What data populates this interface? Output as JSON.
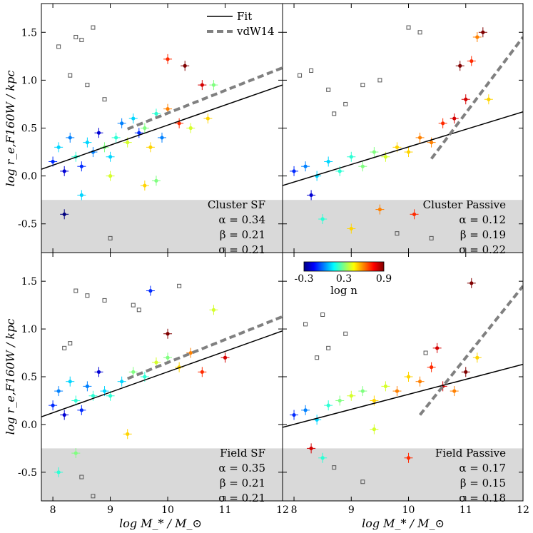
{
  "chart_data": {
    "type": "scatter",
    "layout": "2x2 panels sharing x and y axes",
    "xlabel": "log M_* / M_⊙",
    "ylabel": "log r_e,F160W / kpc",
    "xlim": [
      7.8,
      12.0
    ],
    "ylim": [
      -0.8,
      1.8
    ],
    "x_ticks": [
      8,
      9,
      10,
      11,
      12
    ],
    "y_ticks": [
      -0.5,
      0.0,
      0.5,
      1.0,
      1.5
    ],
    "y_tick_labels": [
      "-0.5",
      "0.0",
      "0.5",
      "1.0",
      "1.5"
    ],
    "shaded_region_below": -0.25,
    "legend": {
      "placement": "top of upper-left panel",
      "entries": [
        {
          "label": "Fit",
          "style": "solid black line"
        },
        {
          "label": "vdW14",
          "style": "thick dashed grey line"
        }
      ]
    },
    "colorbar": {
      "label": "log n",
      "ticks": [
        "-0.3",
        "0.3",
        "0.9"
      ],
      "range": [
        -0.3,
        0.9
      ],
      "colormap": "jet"
    },
    "panels": [
      {
        "name": "Cluster SF",
        "alpha": "α = 0.34",
        "beta": "β = 0.21",
        "sigma": "σ = 0.21",
        "fit_line": {
          "x": [
            7.8,
            12.0
          ],
          "y": [
            0.07,
            0.95
          ]
        },
        "vdw14_line": {
          "x": [
            9.3,
            12.0
          ],
          "y": [
            0.49,
            1.13
          ]
        },
        "points": [
          {
            "x": 8.0,
            "y": 0.15,
            "n": -0.1
          },
          {
            "x": 8.1,
            "y": 0.3,
            "n": 0.1
          },
          {
            "x": 8.2,
            "y": 0.05,
            "n": -0.2
          },
          {
            "x": 8.3,
            "y": 0.4,
            "n": 0.0
          },
          {
            "x": 8.4,
            "y": 0.2,
            "n": 0.2
          },
          {
            "x": 8.5,
            "y": 0.1,
            "n": -0.1
          },
          {
            "x": 8.6,
            "y": 0.35,
            "n": 0.1
          },
          {
            "x": 8.7,
            "y": 0.25,
            "n": 0.0
          },
          {
            "x": 8.8,
            "y": 0.45,
            "n": -0.2
          },
          {
            "x": 8.9,
            "y": 0.3,
            "n": 0.3
          },
          {
            "x": 9.0,
            "y": 0.2,
            "n": 0.1
          },
          {
            "x": 9.1,
            "y": 0.4,
            "n": 0.2
          },
          {
            "x": 9.2,
            "y": 0.55,
            "n": 0.0
          },
          {
            "x": 9.3,
            "y": 0.35,
            "n": 0.4
          },
          {
            "x": 9.4,
            "y": 0.6,
            "n": 0.1
          },
          {
            "x": 9.5,
            "y": 0.45,
            "n": -0.1
          },
          {
            "x": 9.6,
            "y": 0.5,
            "n": 0.3
          },
          {
            "x": 9.7,
            "y": 0.3,
            "n": 0.5
          },
          {
            "x": 9.8,
            "y": 0.65,
            "n": 0.2
          },
          {
            "x": 9.9,
            "y": 0.4,
            "n": 0.0
          },
          {
            "x": 10.0,
            "y": 0.7,
            "n": 0.6
          },
          {
            "x": 10.2,
            "y": 0.55,
            "n": 0.7
          },
          {
            "x": 10.4,
            "y": 0.5,
            "n": 0.4
          },
          {
            "x": 10.6,
            "y": 0.95,
            "n": 0.8
          },
          {
            "x": 10.7,
            "y": 0.6,
            "n": 0.5
          },
          {
            "x": 10.8,
            "y": 0.95,
            "n": 0.3
          },
          {
            "x": 10.3,
            "y": 1.15,
            "n": 0.9
          },
          {
            "x": 10.0,
            "y": 1.22,
            "n": 0.7
          },
          {
            "x": 8.2,
            "y": -0.4,
            "n": -0.3
          },
          {
            "x": 8.5,
            "y": -0.2,
            "n": 0.1
          },
          {
            "x": 9.0,
            "y": 0.0,
            "n": 0.4
          },
          {
            "x": 9.8,
            "y": -0.05,
            "n": 0.3
          },
          {
            "x": 9.6,
            "y": -0.1,
            "n": 0.5
          }
        ],
        "outliers": [
          {
            "x": 8.4,
            "y": 1.45
          },
          {
            "x": 8.5,
            "y": 1.42
          },
          {
            "x": 8.7,
            "y": 1.55
          },
          {
            "x": 8.3,
            "y": 1.05
          },
          {
            "x": 8.6,
            "y": 0.95
          },
          {
            "x": 8.1,
            "y": 1.35
          },
          {
            "x": 9.0,
            "y": -0.65
          },
          {
            "x": 8.9,
            "y": 0.8
          }
        ]
      },
      {
        "name": "Cluster Passive",
        "alpha": "α = 0.12",
        "beta": "β = 0.19",
        "sigma": "σ = 0.22",
        "fit_line": {
          "x": [
            7.8,
            12.0
          ],
          "y": [
            -0.1,
            0.67
          ]
        },
        "vdw14_line": {
          "x": [
            10.4,
            12.0
          ],
          "y": [
            0.18,
            1.45
          ]
        },
        "points": [
          {
            "x": 8.0,
            "y": 0.05,
            "n": -0.1
          },
          {
            "x": 8.2,
            "y": 0.1,
            "n": 0.0
          },
          {
            "x": 8.4,
            "y": 0.0,
            "n": 0.1
          },
          {
            "x": 8.6,
            "y": 0.15,
            "n": 0.1
          },
          {
            "x": 8.8,
            "y": 0.05,
            "n": 0.2
          },
          {
            "x": 9.0,
            "y": 0.2,
            "n": 0.2
          },
          {
            "x": 9.2,
            "y": 0.1,
            "n": 0.3
          },
          {
            "x": 9.4,
            "y": 0.25,
            "n": 0.3
          },
          {
            "x": 9.6,
            "y": 0.2,
            "n": 0.4
          },
          {
            "x": 9.8,
            "y": 0.3,
            "n": 0.5
          },
          {
            "x": 10.0,
            "y": 0.25,
            "n": 0.5
          },
          {
            "x": 10.2,
            "y": 0.4,
            "n": 0.6
          },
          {
            "x": 10.4,
            "y": 0.35,
            "n": 0.6
          },
          {
            "x": 10.6,
            "y": 0.55,
            "n": 0.7
          },
          {
            "x": 10.8,
            "y": 0.6,
            "n": 0.8
          },
          {
            "x": 11.0,
            "y": 0.8,
            "n": 0.8
          },
          {
            "x": 11.1,
            "y": 1.2,
            "n": 0.7
          },
          {
            "x": 11.2,
            "y": 1.45,
            "n": 0.6
          },
          {
            "x": 11.3,
            "y": 1.5,
            "n": 0.9
          },
          {
            "x": 11.4,
            "y": 0.8,
            "n": 0.5
          },
          {
            "x": 10.9,
            "y": 1.15,
            "n": 0.9
          },
          {
            "x": 8.5,
            "y": -0.45,
            "n": 0.2
          },
          {
            "x": 9.5,
            "y": -0.35,
            "n": 0.6
          },
          {
            "x": 10.1,
            "y": -0.4,
            "n": 0.7
          },
          {
            "x": 9.0,
            "y": -0.55,
            "n": 0.5
          },
          {
            "x": 8.3,
            "y": -0.2,
            "n": -0.2
          }
        ],
        "outliers": [
          {
            "x": 8.1,
            "y": 1.05
          },
          {
            "x": 8.3,
            "y": 1.1
          },
          {
            "x": 8.6,
            "y": 0.9
          },
          {
            "x": 8.9,
            "y": 0.75
          },
          {
            "x": 9.2,
            "y": 0.95
          },
          {
            "x": 9.5,
            "y": 1.0
          },
          {
            "x": 10.0,
            "y": 1.55
          },
          {
            "x": 10.2,
            "y": 1.5
          },
          {
            "x": 8.7,
            "y": 0.65
          },
          {
            "x": 9.8,
            "y": -0.6
          },
          {
            "x": 10.4,
            "y": -0.65
          }
        ]
      },
      {
        "name": "Field SF",
        "alpha": "α = 0.35",
        "beta": "β = 0.21",
        "sigma": "σ = 0.21",
        "fit_line": {
          "x": [
            7.8,
            12.0
          ],
          "y": [
            0.08,
            0.98
          ]
        },
        "vdw14_line": {
          "x": [
            9.3,
            12.0
          ],
          "y": [
            0.48,
            1.13
          ]
        },
        "points": [
          {
            "x": 8.0,
            "y": 0.2,
            "n": -0.1
          },
          {
            "x": 8.1,
            "y": 0.35,
            "n": 0.0
          },
          {
            "x": 8.2,
            "y": 0.1,
            "n": -0.2
          },
          {
            "x": 8.3,
            "y": 0.45,
            "n": 0.1
          },
          {
            "x": 8.4,
            "y": 0.25,
            "n": 0.2
          },
          {
            "x": 8.5,
            "y": 0.15,
            "n": -0.1
          },
          {
            "x": 8.6,
            "y": 0.4,
            "n": 0.0
          },
          {
            "x": 8.7,
            "y": 0.3,
            "n": 0.2
          },
          {
            "x": 8.8,
            "y": 0.55,
            "n": -0.2
          },
          {
            "x": 8.9,
            "y": 0.35,
            "n": 0.1
          },
          {
            "x": 9.0,
            "y": 0.3,
            "n": 0.2
          },
          {
            "x": 9.2,
            "y": 0.45,
            "n": 0.1
          },
          {
            "x": 9.4,
            "y": 0.55,
            "n": 0.3
          },
          {
            "x": 9.6,
            "y": 0.5,
            "n": 0.2
          },
          {
            "x": 9.8,
            "y": 0.65,
            "n": 0.4
          },
          {
            "x": 10.0,
            "y": 0.7,
            "n": 0.3
          },
          {
            "x": 10.2,
            "y": 0.6,
            "n": 0.5
          },
          {
            "x": 10.4,
            "y": 0.75,
            "n": 0.6
          },
          {
            "x": 10.6,
            "y": 0.55,
            "n": 0.7
          },
          {
            "x": 10.8,
            "y": 1.2,
            "n": 0.4
          },
          {
            "x": 11.0,
            "y": 0.7,
            "n": 0.8
          },
          {
            "x": 9.7,
            "y": 1.4,
            "n": -0.1
          },
          {
            "x": 10.0,
            "y": 0.95,
            "n": 0.9
          },
          {
            "x": 8.1,
            "y": -0.5,
            "n": 0.2
          },
          {
            "x": 8.4,
            "y": -0.3,
            "n": 0.3
          },
          {
            "x": 9.3,
            "y": -0.1,
            "n": 0.5
          }
        ],
        "outliers": [
          {
            "x": 8.4,
            "y": 1.4
          },
          {
            "x": 8.6,
            "y": 1.35
          },
          {
            "x": 8.9,
            "y": 1.3
          },
          {
            "x": 9.4,
            "y": 1.25
          },
          {
            "x": 9.5,
            "y": 1.2
          },
          {
            "x": 8.3,
            "y": 0.85
          },
          {
            "x": 8.2,
            "y": 0.8
          },
          {
            "x": 8.7,
            "y": -0.75
          },
          {
            "x": 8.5,
            "y": -0.55
          },
          {
            "x": 10.2,
            "y": 1.45
          }
        ]
      },
      {
        "name": "Field Passive",
        "alpha": "α = 0.17",
        "beta": "β = 0.15",
        "sigma": "σ = 0.18",
        "fit_line": {
          "x": [
            7.8,
            12.0
          ],
          "y": [
            -0.03,
            0.63
          ]
        },
        "vdw14_line": {
          "x": [
            10.2,
            12.0
          ],
          "y": [
            0.1,
            1.45
          ]
        },
        "points": [
          {
            "x": 8.0,
            "y": 0.1,
            "n": -0.1
          },
          {
            "x": 8.2,
            "y": 0.15,
            "n": 0.0
          },
          {
            "x": 8.4,
            "y": 0.05,
            "n": 0.1
          },
          {
            "x": 8.6,
            "y": 0.2,
            "n": 0.2
          },
          {
            "x": 8.8,
            "y": 0.25,
            "n": 0.3
          },
          {
            "x": 9.0,
            "y": 0.3,
            "n": 0.4
          },
          {
            "x": 9.2,
            "y": 0.35,
            "n": 0.3
          },
          {
            "x": 9.4,
            "y": 0.25,
            "n": 0.5
          },
          {
            "x": 9.6,
            "y": 0.4,
            "n": 0.4
          },
          {
            "x": 9.8,
            "y": 0.35,
            "n": 0.6
          },
          {
            "x": 10.0,
            "y": 0.5,
            "n": 0.5
          },
          {
            "x": 10.2,
            "y": 0.45,
            "n": 0.6
          },
          {
            "x": 10.4,
            "y": 0.6,
            "n": 0.7
          },
          {
            "x": 10.6,
            "y": 0.4,
            "n": 0.8
          },
          {
            "x": 10.8,
            "y": 0.35,
            "n": 0.6
          },
          {
            "x": 11.0,
            "y": 0.55,
            "n": 0.9
          },
          {
            "x": 11.2,
            "y": 0.7,
            "n": 0.5
          },
          {
            "x": 11.1,
            "y": 1.48,
            "n": 0.9
          },
          {
            "x": 10.5,
            "y": 0.8,
            "n": 0.8
          },
          {
            "x": 8.5,
            "y": -0.35,
            "n": 0.2
          },
          {
            "x": 8.3,
            "y": -0.25,
            "n": 0.8
          },
          {
            "x": 10.0,
            "y": -0.35,
            "n": 0.7
          },
          {
            "x": 9.4,
            "y": -0.05,
            "n": 0.4
          }
        ],
        "outliers": [
          {
            "x": 8.2,
            "y": 1.05
          },
          {
            "x": 8.5,
            "y": 1.15
          },
          {
            "x": 8.9,
            "y": 0.95
          },
          {
            "x": 8.6,
            "y": 0.8
          },
          {
            "x": 10.3,
            "y": 0.75
          },
          {
            "x": 8.7,
            "y": -0.45
          },
          {
            "x": 9.2,
            "y": -0.6
          },
          {
            "x": 8.4,
            "y": 0.7
          }
        ]
      }
    ]
  }
}
